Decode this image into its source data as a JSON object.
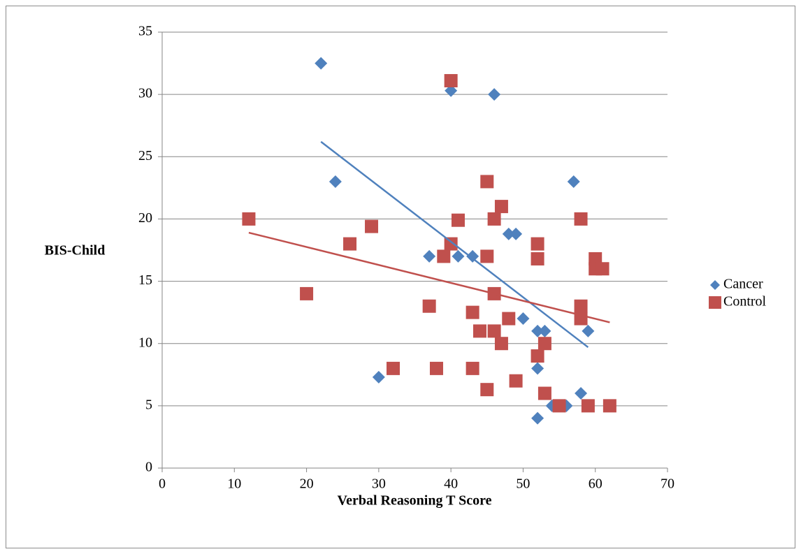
{
  "chart_data": {
    "type": "scatter",
    "x_label": "Verbal Reasoning T Score",
    "y_label": "BIS-Child",
    "xlim": [
      0,
      70
    ],
    "xticks": [
      0,
      10,
      20,
      30,
      40,
      50,
      60,
      70
    ],
    "ylim": [
      0,
      35
    ],
    "yticks": [
      0,
      5,
      10,
      15,
      20,
      25,
      30,
      35
    ],
    "grid": true,
    "legend": "right",
    "series": [
      {
        "name": "Cancer",
        "color": "#4f81bd",
        "marker": "diamond",
        "x": [
          22,
          40,
          46,
          24,
          57,
          48,
          49,
          37,
          41,
          43,
          50,
          52,
          53,
          59,
          30,
          52,
          58,
          54,
          56,
          52
        ],
        "values": [
          32.5,
          30.3,
          30,
          23,
          23,
          18.8,
          18.8,
          17,
          17,
          17,
          12,
          11,
          11,
          11,
          7.3,
          8,
          6,
          5,
          5,
          4
        ],
        "trendline": {
          "x": [
            22,
            59
          ],
          "values": [
            26.2,
            9.7
          ]
        }
      },
      {
        "name": "Control",
        "color": "#c0504d",
        "marker": "square",
        "x": [
          12,
          20,
          26,
          29,
          32,
          37,
          38,
          39,
          40,
          40,
          41,
          43,
          43,
          44,
          45,
          45,
          45,
          46,
          46,
          46,
          47,
          47,
          48,
          49,
          52,
          52,
          52,
          53,
          53,
          55,
          58,
          58,
          58,
          59,
          60,
          60,
          61,
          62
        ],
        "values": [
          20,
          14,
          18,
          19.4,
          8,
          13,
          8,
          17,
          31.1,
          18,
          19.9,
          12.5,
          8,
          11,
          23,
          17,
          6.3,
          20,
          14,
          11,
          21,
          10,
          12,
          7,
          18,
          16.8,
          9,
          10,
          6,
          5,
          20,
          13,
          12,
          5,
          16.8,
          16,
          16,
          5
        ],
        "trendline": {
          "x": [
            12,
            62
          ],
          "values": [
            18.9,
            11.7
          ]
        }
      }
    ]
  }
}
